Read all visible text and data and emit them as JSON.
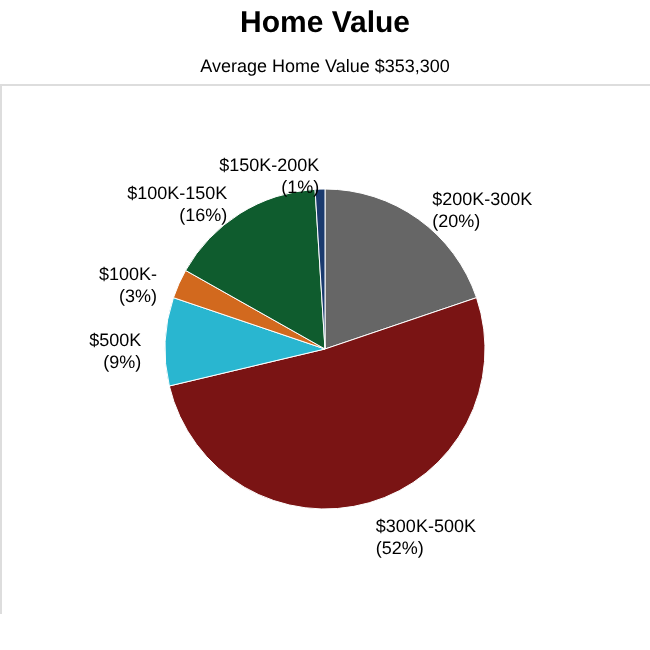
{
  "chart_data": {
    "type": "pie",
    "title": "Home Value",
    "subtitle": "Average Home Value  $353,300",
    "categories": [
      "$200K-300K",
      "$300K-500K",
      "$500K",
      "$100K-",
      "$100K-150K",
      "$150K-200K"
    ],
    "values": [
      20,
      52,
      9,
      3,
      16,
      1
    ],
    "value_labels": [
      "(20%)",
      "(52%)",
      "(9%)",
      "(3%)",
      "(16%)",
      "(1%)"
    ],
    "colors": [
      "#666666",
      "#7a1414",
      "#29b6d0",
      "#d2691e",
      "#0f5c2e",
      "#1a3a6e"
    ],
    "legend": false
  }
}
